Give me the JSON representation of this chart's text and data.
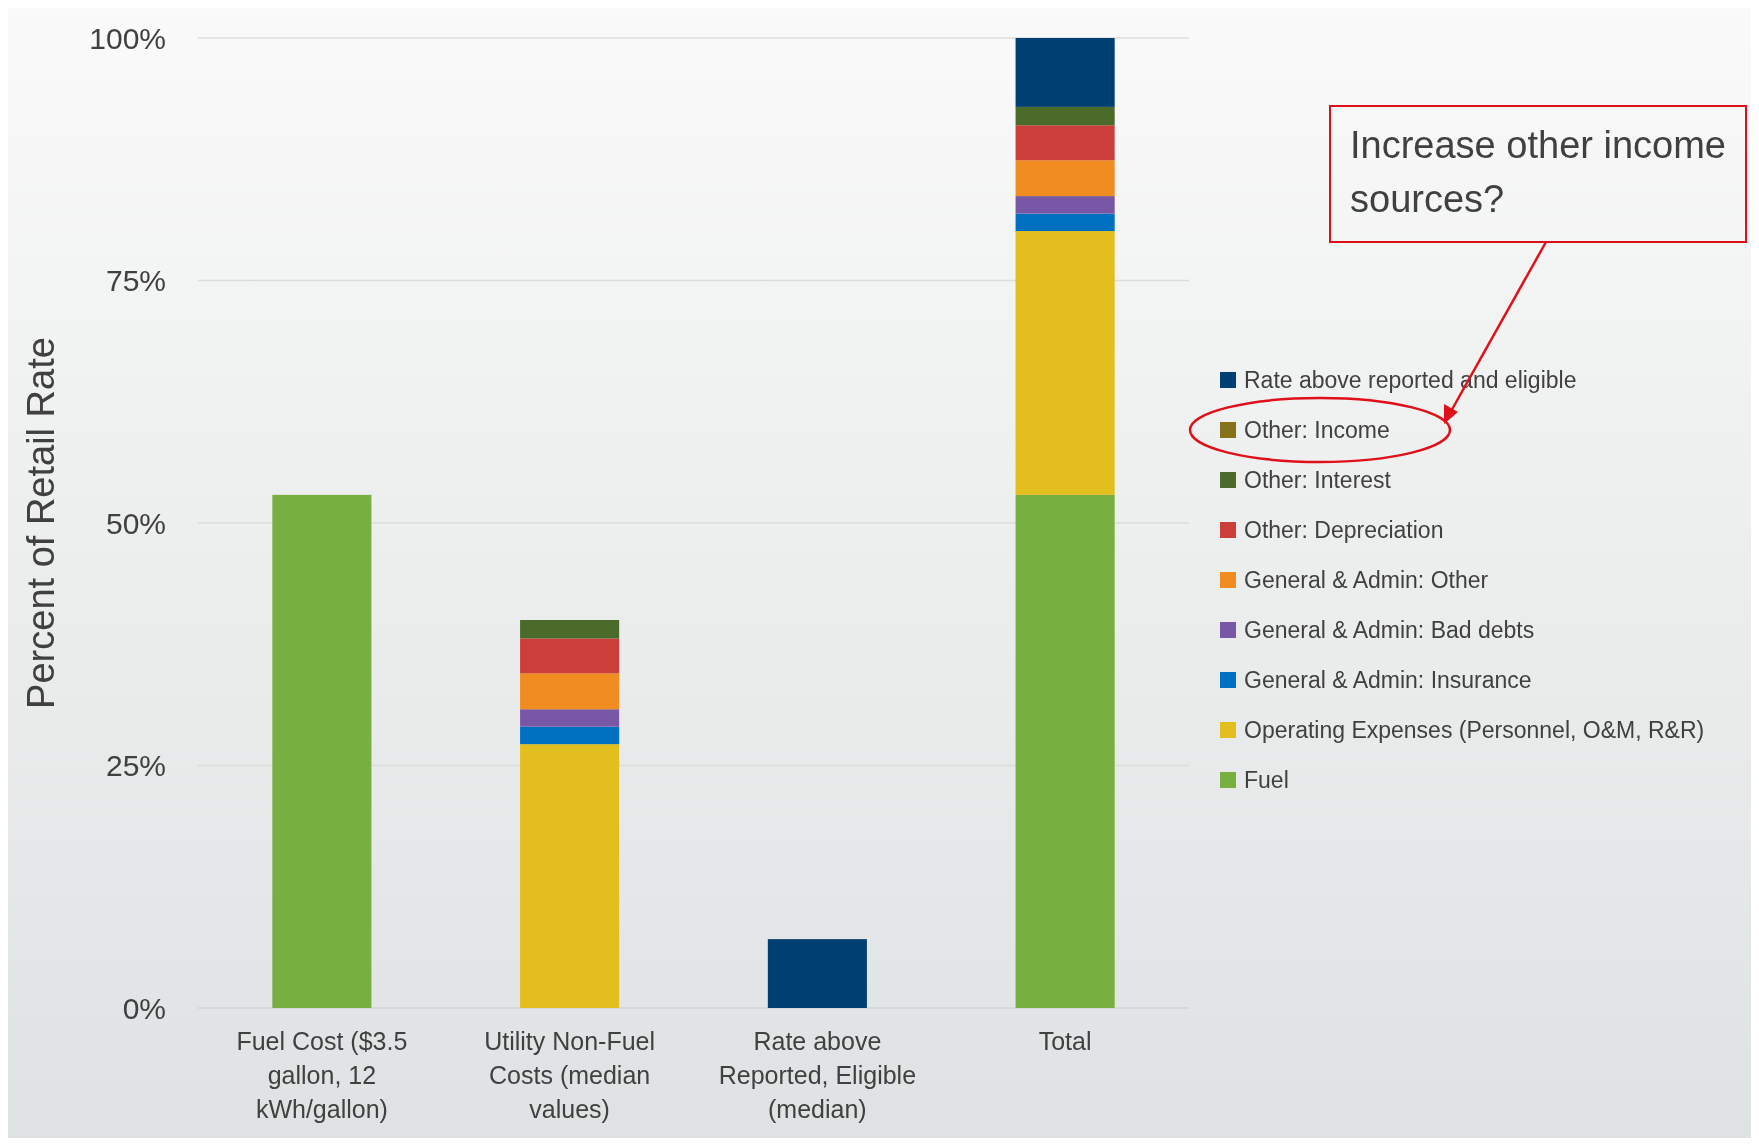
{
  "chart_data": {
    "type": "bar",
    "stacked": true,
    "ylabel": "Percent of Retail Rate",
    "categories": [
      "Fuel Cost ($3.5 gallon, 12 kWh/gallon)",
      "Utility Non-Fuel Costs (median values)",
      "Rate above Reported, Eligible (median)",
      "Total"
    ],
    "series": [
      {
        "name": "Fuel",
        "color": "#77b041",
        "values": [
          52.9,
          0,
          0,
          52.9
        ]
      },
      {
        "name": "Operating Expenses (Personnel, O&M, R&R)",
        "color": "#e3be1f",
        "values": [
          0,
          27.2,
          0,
          27.2
        ]
      },
      {
        "name": "General & Admin: Insurance",
        "color": "#0070c0",
        "values": [
          0,
          1.8,
          0,
          1.8
        ]
      },
      {
        "name": "General & Admin: Bad debts",
        "color": "#7857a6",
        "values": [
          0,
          1.8,
          0,
          1.8
        ]
      },
      {
        "name": "General & Admin: Other",
        "color": "#f08c20",
        "values": [
          0,
          3.7,
          0,
          3.7
        ]
      },
      {
        "name": "Other: Depreciation",
        "color": "#cc3e3a",
        "values": [
          0,
          3.6,
          0,
          3.6
        ]
      },
      {
        "name": "Other: Interest",
        "color": "#4a6b2a",
        "values": [
          0,
          1.9,
          0,
          1.9
        ]
      },
      {
        "name": "Other: Income",
        "color": "#85721a",
        "values": [
          0,
          0,
          0,
          0
        ]
      },
      {
        "name": "Rate above reported and eligible",
        "color": "#003f72",
        "values": [
          0,
          0,
          7.1,
          7.1
        ]
      }
    ],
    "ylim": [
      0,
      100
    ],
    "yticks": [
      {
        "value": 0,
        "label": "0%"
      },
      {
        "value": 25,
        "label": "25%"
      },
      {
        "value": 50,
        "label": "50%"
      },
      {
        "value": 75,
        "label": "75%"
      },
      {
        "value": 100,
        "label": "100%"
      }
    ],
    "grid": "y",
    "legend": "right",
    "annotations": [
      "Increase other income sources?"
    ]
  }
}
